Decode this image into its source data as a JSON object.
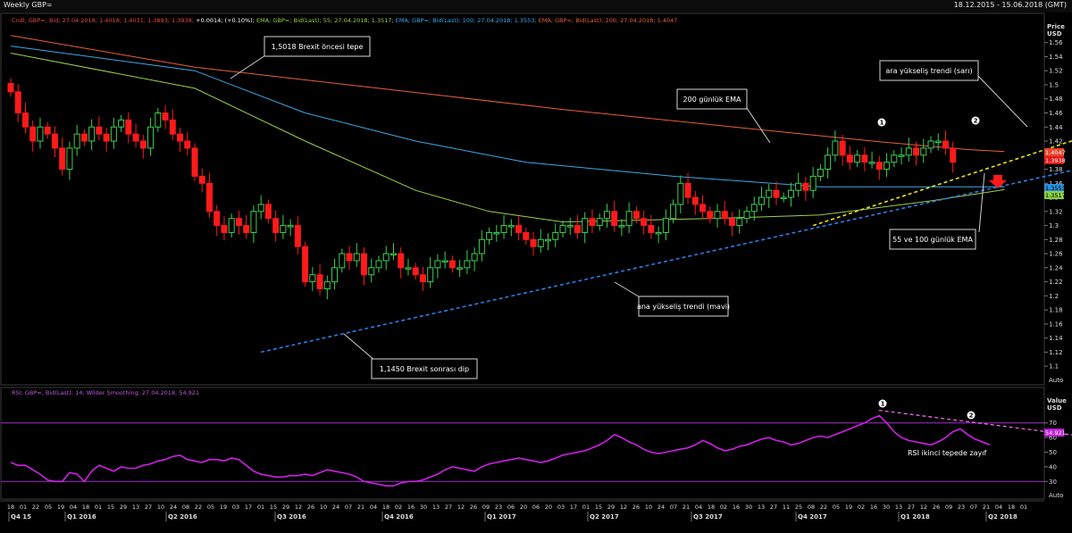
{
  "window": {
    "title": "Weekly GBP=",
    "date_range": "18.12.2015 - 15.06.2018 (GMT)"
  },
  "price_panel": {
    "legend": [
      {
        "text": "Cndl; GBP=; Bid; 27.04.2018; 1.4018; 1.4031; 1.3893; 1.3938;",
        "color": "#e84a4a"
      },
      {
        "text": "+0.0014; (+0.10%);",
        "color": "#ffffff"
      },
      {
        "text": "EMA; GBP=; Bid(Last); 55; 27.04.2018; 1.3517;",
        "color": "#9ad04a"
      },
      {
        "text": "EMA; GBP=; Bid(Last); 100; 27.04.2018; 1.3553;",
        "color": "#3ea8e8"
      },
      {
        "text": "EMA; GBP=; Bid(Last); 200; 27.04.2018; 1.4047",
        "color": "#e8603a"
      }
    ],
    "axis_title": "Price USD",
    "y_ticks": [
      "1.56",
      "1.54",
      "1.52",
      "1.5",
      "1.48",
      "1.46",
      "1.44",
      "1.42",
      "1.4",
      "1.38",
      "1.36",
      "1.34",
      "1.32",
      "1.3",
      "1.28",
      "1.26",
      "1.24",
      "1.22",
      "1.2",
      "1.18",
      "1.16",
      "1.14",
      "1.12",
      "1.1"
    ],
    "ylim": [
      1.085,
      1.585
    ],
    "auto_label": "Auto",
    "price_labels": [
      {
        "text": "1.4047",
        "value": 1.4047,
        "bg": "#e8442a",
        "fg": "#ffffff"
      },
      {
        "text": "1.3938",
        "value": 1.3938,
        "bg": "#e01818",
        "fg": "#ffffff"
      },
      {
        "text": "1.3553",
        "value": 1.3553,
        "bg": "#2a8ee0",
        "fg": "#000000"
      },
      {
        "text": "1.3517",
        "value": 1.3517,
        "bg": "#8ad040",
        "fg": "#000000"
      }
    ],
    "annotations": [
      {
        "text": "1,5018 Brexit öncesi tepe"
      },
      {
        "text": "200 günlük EMA"
      },
      {
        "text": "ara yükseliş trendi (sarı)"
      },
      {
        "text": "55 ve 100 günlük EMA"
      },
      {
        "text": "ana yükseliş trendi (mavi)"
      },
      {
        "text": "1,1450 Brexit sonrası dip"
      }
    ],
    "peak_markers": [
      "1",
      "2"
    ]
  },
  "rsi_panel": {
    "legend": "RSI; GBP=; Bid(Last); 14; Wilder Smoothing; 27.04.2018; 54.921",
    "axis_title": "Value USD",
    "y_ticks": [
      "70",
      "60",
      "50",
      "40",
      "30"
    ],
    "ylim": [
      21,
      79
    ],
    "current_label": "54.921",
    "auto_label": "Auto",
    "annotation": "RSI ikinci tepede zayıf",
    "peak_markers": [
      "1",
      "2"
    ]
  },
  "x_axis": {
    "week_labels": [
      "18",
      "01",
      "22",
      "05",
      "19",
      "04",
      "18",
      "01",
      "15",
      "29",
      "13",
      "27",
      "10",
      "24",
      "08",
      "22",
      "05",
      "19",
      "03",
      "17",
      "01",
      "15",
      "29",
      "12",
      "26",
      "10",
      "24",
      "07",
      "21",
      "04",
      "18",
      "02",
      "16",
      "30",
      "13",
      "27",
      "12",
      "26",
      "09",
      "23",
      "06",
      "20",
      "06",
      "20",
      "03",
      "17",
      "01",
      "15",
      "29",
      "12",
      "26",
      "10",
      "24",
      "07",
      "21",
      "04",
      "18",
      "02",
      "16",
      "30",
      "13",
      "27",
      "11",
      "25",
      "08",
      "22",
      "05",
      "19",
      "02",
      "16",
      "30",
      "13",
      "27",
      "12",
      "26",
      "09",
      "23",
      "07",
      "21",
      "04",
      "18",
      "01"
    ],
    "quarters": [
      "Q4 15",
      "Q1 2016",
      "Q2 2016",
      "Q3 2016",
      "Q4 2016",
      "Q1 2017",
      "Q2 2017",
      "Q3 2017",
      "Q4 2017",
      "Q1 2018",
      "Q2 2018"
    ]
  },
  "chart_data": [
    {
      "type": "candlestick",
      "title": "Weekly GBP=",
      "ylabel": "Price USD",
      "ylim": [
        1.085,
        1.585
      ],
      "legend_position": "top-left",
      "grid": false,
      "x_start": "2015-12-21",
      "x_interval": "weekly",
      "x_last": "2018-04-27",
      "closes": [
        1.49,
        1.46,
        1.44,
        1.42,
        1.44,
        1.43,
        1.41,
        1.38,
        1.41,
        1.43,
        1.42,
        1.44,
        1.43,
        1.42,
        1.44,
        1.45,
        1.43,
        1.42,
        1.41,
        1.44,
        1.46,
        1.45,
        1.43,
        1.42,
        1.41,
        1.37,
        1.36,
        1.32,
        1.3,
        1.29,
        1.31,
        1.3,
        1.29,
        1.32,
        1.33,
        1.31,
        1.29,
        1.3,
        1.3,
        1.27,
        1.22,
        1.23,
        1.21,
        1.22,
        1.24,
        1.26,
        1.25,
        1.26,
        1.23,
        1.24,
        1.25,
        1.26,
        1.26,
        1.24,
        1.24,
        1.23,
        1.22,
        1.24,
        1.25,
        1.25,
        1.24,
        1.24,
        1.25,
        1.26,
        1.28,
        1.29,
        1.29,
        1.3,
        1.3,
        1.29,
        1.28,
        1.27,
        1.28,
        1.28,
        1.29,
        1.3,
        1.3,
        1.29,
        1.31,
        1.3,
        1.31,
        1.32,
        1.3,
        1.3,
        1.32,
        1.31,
        1.3,
        1.29,
        1.29,
        1.31,
        1.33,
        1.36,
        1.34,
        1.33,
        1.32,
        1.31,
        1.32,
        1.31,
        1.3,
        1.31,
        1.32,
        1.33,
        1.34,
        1.35,
        1.34,
        1.34,
        1.35,
        1.36,
        1.35,
        1.37,
        1.38,
        1.4,
        1.42,
        1.4,
        1.39,
        1.4,
        1.39,
        1.39,
        1.38,
        1.39,
        1.4,
        1.4,
        1.41,
        1.4,
        1.41,
        1.42,
        1.42,
        1.41,
        1.39
      ],
      "series": [
        {
          "name": "EMA 200",
          "color": "#e8603a",
          "points": [
            [
              0,
              1.57
            ],
            [
              25,
              1.525
            ],
            [
              50,
              1.495
            ],
            [
              75,
              1.465
            ],
            [
              100,
              1.438
            ],
            [
              118,
              1.419
            ],
            [
              130,
              1.408
            ],
            [
              135,
              1.405
            ]
          ]
        },
        {
          "name": "EMA 100",
          "color": "#3ea8e8",
          "points": [
            [
              0,
              1.555
            ],
            [
              25,
              1.52
            ],
            [
              40,
              1.46
            ],
            [
              55,
              1.42
            ],
            [
              70,
              1.39
            ],
            [
              90,
              1.37
            ],
            [
              110,
              1.355
            ],
            [
              125,
              1.355
            ],
            [
              135,
              1.355
            ]
          ]
        },
        {
          "name": "EMA 55",
          "color": "#9ad04a",
          "points": [
            [
              0,
              1.545
            ],
            [
              25,
              1.495
            ],
            [
              40,
              1.42
            ],
            [
              55,
              1.35
            ],
            [
              65,
              1.32
            ],
            [
              75,
              1.305
            ],
            [
              95,
              1.31
            ],
            [
              110,
              1.315
            ],
            [
              125,
              1.335
            ],
            [
              135,
              1.351
            ]
          ]
        },
        {
          "name": "ana yükseliş trendi (mavi)",
          "color": "#2a7ee8",
          "dashed": true,
          "points": [
            [
              34,
              1.12
            ],
            [
              147,
              1.385
            ]
          ]
        },
        {
          "name": "ara yükseliş trendi (sarı)",
          "color": "#e8e020",
          "dashed": true,
          "points": [
            [
              109,
              1.3
            ],
            [
              147,
              1.43
            ]
          ]
        }
      ]
    },
    {
      "type": "line",
      "title": "RSI",
      "ylabel": "Value USD",
      "ylim": [
        21,
        79
      ],
      "reference_lines": [
        70,
        30
      ],
      "values": [
        43,
        41,
        41,
        38,
        35,
        31,
        30,
        30,
        36,
        35,
        30,
        37,
        41,
        39,
        37,
        40,
        39,
        39,
        41,
        42,
        44,
        45,
        47,
        48,
        45,
        44,
        43,
        45,
        45,
        44,
        46,
        45,
        41,
        37,
        35,
        34,
        33,
        33,
        34,
        34,
        35,
        34,
        36,
        38,
        37,
        36,
        35,
        33,
        30,
        29,
        28,
        27,
        27,
        29,
        30,
        30,
        31,
        33,
        35,
        38,
        40,
        39,
        38,
        37,
        40,
        42,
        43,
        44,
        45,
        46,
        45,
        44,
        43,
        44,
        46,
        48,
        49,
        50,
        51,
        53,
        55,
        58,
        62,
        60,
        57,
        55,
        52,
        50,
        49,
        50,
        51,
        52,
        53,
        55,
        58,
        56,
        53,
        51,
        52,
        54,
        55,
        57,
        59,
        60,
        58,
        57,
        55,
        56,
        58,
        60,
        61,
        60,
        62,
        64,
        66,
        68,
        70,
        73,
        75,
        70,
        64,
        60,
        58,
        57,
        56,
        55,
        57,
        60,
        64,
        66,
        62,
        59,
        57,
        55
      ],
      "trendline": [
        [
          124,
          75
        ],
        [
          147,
          60
        ]
      ]
    }
  ]
}
